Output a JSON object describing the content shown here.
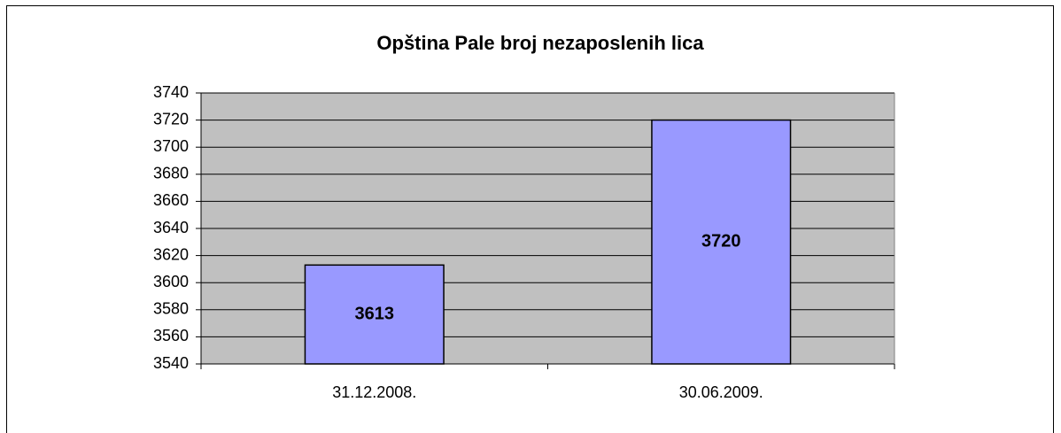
{
  "chart_data": {
    "type": "bar",
    "title": "Opština Pale broj nezaposlenih lica",
    "categories": [
      "31.12.2008.",
      "30.06.2009."
    ],
    "values": [
      3613,
      3720
    ],
    "color": "#9999ff",
    "ylim": [
      3540,
      3740
    ],
    "yticks": [
      3540,
      3560,
      3580,
      3600,
      3620,
      3640,
      3660,
      3680,
      3700,
      3720,
      3740
    ],
    "grid": true,
    "plot_background": "#c0c0c0"
  }
}
